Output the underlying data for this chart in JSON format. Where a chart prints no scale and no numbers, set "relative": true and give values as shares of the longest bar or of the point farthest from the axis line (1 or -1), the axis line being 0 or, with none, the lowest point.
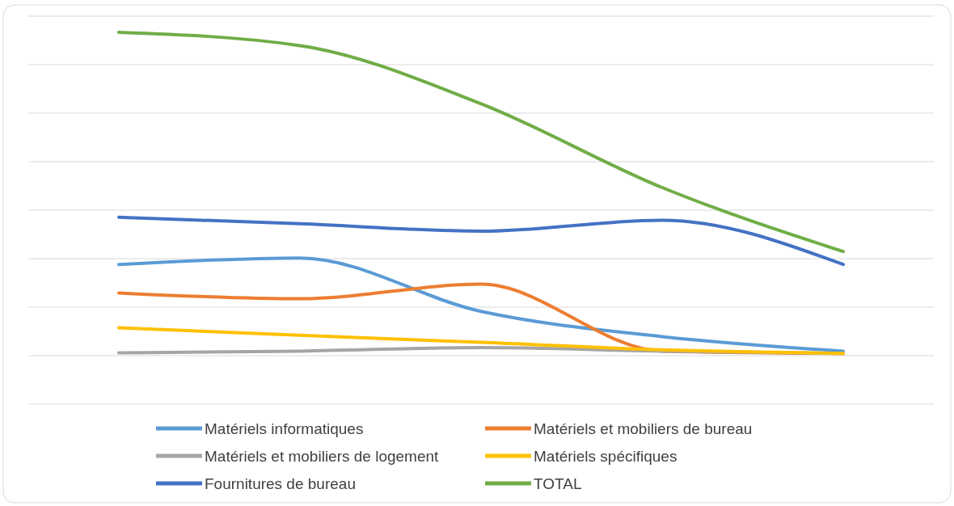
{
  "chart_data": {
    "type": "line",
    "relative": true,
    "categories": [
      null,
      null,
      null,
      null,
      null
    ],
    "grid": "y",
    "legend": "bottom",
    "series": [
      {
        "name": "Matériels informatiques",
        "color": "#5b9bd5",
        "values": [
          0.282,
          0.302,
          0.137,
          0.059,
          0.014
        ]
      },
      {
        "name": "Matériels et mobiliers de bureau",
        "color": "#ed7d31",
        "values": [
          0.194,
          0.176,
          0.221,
          0.014,
          0.007
        ]
      },
      {
        "name": "Matériels et mobiliers de logement",
        "color": "#a5a5a5",
        "values": [
          0.009,
          0.014,
          0.025,
          0.014,
          0.007
        ]
      },
      {
        "name": "Matériels spécifiques",
        "color": "#ffc000",
        "values": [
          0.086,
          0.063,
          0.041,
          0.018,
          0.007
        ]
      },
      {
        "name": "Fournitures de bureau",
        "color": "#4472c4",
        "values": [
          0.428,
          0.408,
          0.385,
          0.419,
          0.282
        ]
      },
      {
        "name": "TOTAL",
        "color": "#70ad47",
        "values": [
          1,
          0.959,
          0.779,
          0.52,
          0.322
        ]
      }
    ]
  }
}
